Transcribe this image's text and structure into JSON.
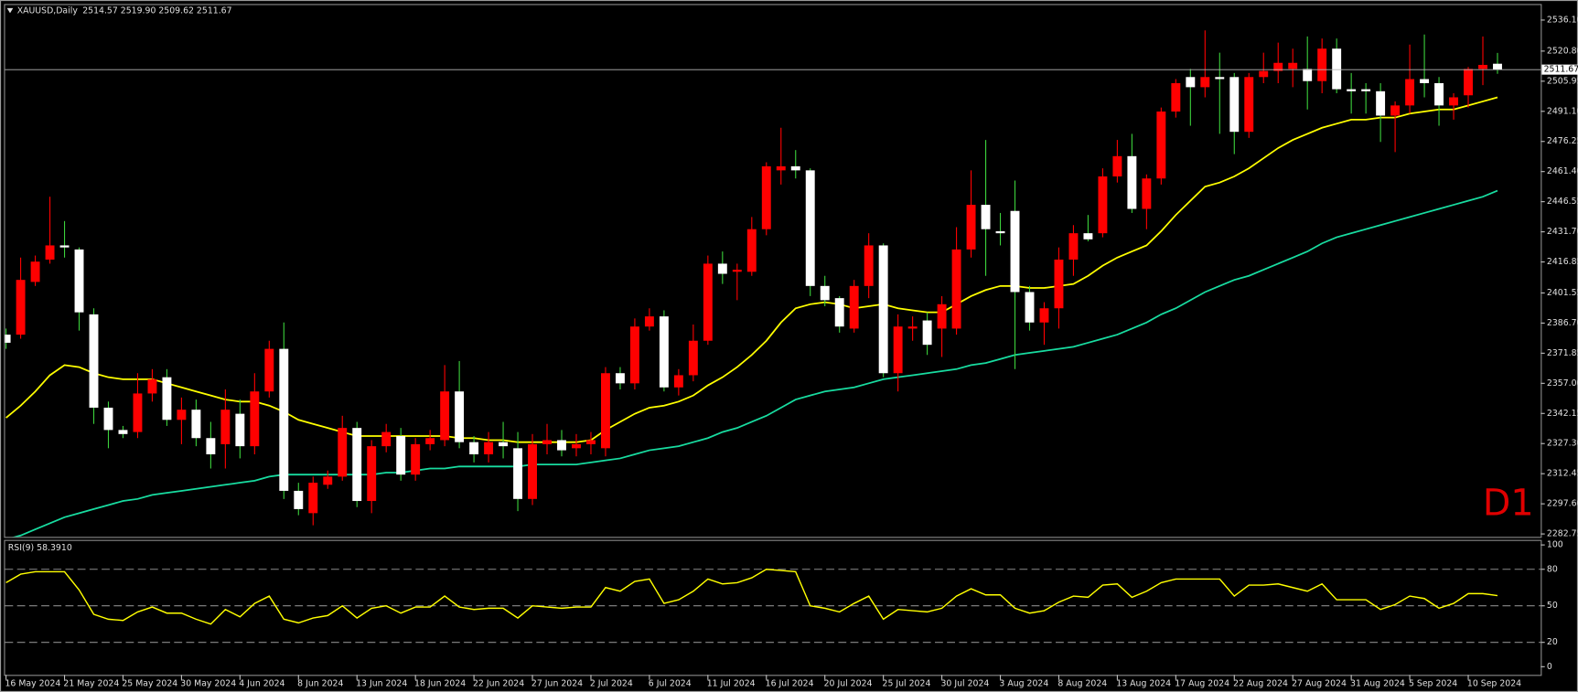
{
  "chart_data": [
    {
      "type": "candlestick",
      "title": "XAUUSD,Daily",
      "subtitle": "2514.57 2519.90 2509.62 2511.67",
      "timeframe": "D1",
      "categories": [
        "16 May 2024",
        null,
        null,
        null,
        "21 May 2024",
        null,
        null,
        null,
        "25 May 2024",
        null,
        null,
        null,
        "30 May 2024",
        null,
        null,
        null,
        "4 Jun 2024",
        null,
        null,
        null,
        "8 Jun 2024",
        null,
        null,
        null,
        "13 Jun 2024",
        null,
        null,
        null,
        "18 Jun 2024",
        null,
        null,
        null,
        "22 Jun 2024",
        null,
        null,
        null,
        "27 Jun 2024",
        null,
        null,
        null,
        "2 Jul 2024",
        null,
        null,
        null,
        "6 Jul 2024",
        null,
        null,
        null,
        "11 Jul 2024",
        null,
        null,
        null,
        "16 Jul 2024",
        null,
        null,
        null,
        "20 Jul 2024",
        null,
        null,
        null,
        "25 Jul 2024",
        null,
        null,
        null,
        "30 Jul 2024",
        null,
        null,
        null,
        "3 Aug 2024",
        null,
        null,
        null,
        "8 Aug 2024",
        null,
        null,
        null,
        "13 Aug 2024",
        null,
        null,
        null,
        "17 Aug 2024",
        null,
        null,
        null,
        "22 Aug 2024",
        null,
        null,
        null,
        "27 Aug 2024",
        null,
        null,
        null,
        "31 Aug 2024",
        null,
        null,
        null,
        "5 Sep 2024",
        null,
        null,
        null,
        "10 Sep 2024",
        null,
        null
      ],
      "open": [
        2381,
        2381,
        2407,
        2418,
        2425,
        2423,
        2391,
        2345,
        2334,
        2333,
        2352,
        2360,
        2339,
        2344,
        2330,
        2327,
        2342,
        2326,
        2353,
        2374,
        2304,
        2293,
        2307,
        2311,
        2335,
        2299,
        2326,
        2331,
        2312,
        2327,
        2329,
        2353,
        2328,
        2322,
        2328,
        2325,
        2300,
        2327,
        2329,
        2325,
        2327,
        2325,
        2362,
        2357,
        2385,
        2390,
        2355,
        2361,
        2378,
        2416,
        2412,
        2412,
        2433,
        2462,
        2464,
        2462,
        2405,
        2399,
        2384,
        2405,
        2425,
        2362,
        2384,
        2388,
        2384,
        2384,
        2423,
        2445,
        2432,
        2442,
        2402,
        2387,
        2394,
        2418,
        2431,
        2431,
        2459,
        2469,
        2443,
        2458,
        2491,
        2508,
        2503,
        2508,
        2508,
        2481,
        2508,
        2511,
        2512,
        2512,
        2506,
        2522,
        2502,
        2502,
        2501,
        2489,
        2494,
        2507,
        2505,
        2494,
        2499,
        2512,
        2514.57
      ],
      "high": [
        2384,
        2419,
        2420,
        2449,
        2437,
        2424,
        2394,
        2348,
        2336,
        2362,
        2364,
        2364,
        2350,
        2349,
        2338,
        2354,
        2349,
        2362,
        2378,
        2387,
        2308,
        2311,
        2314,
        2341,
        2338,
        2329,
        2337,
        2335,
        2330,
        2334,
        2366,
        2368,
        2331,
        2333,
        2338,
        2333,
        2332,
        2337,
        2334,
        2332,
        2333,
        2365,
        2365,
        2389,
        2394,
        2393,
        2364,
        2386,
        2420,
        2422,
        2416,
        2439,
        2466,
        2483,
        2472,
        2463,
        2410,
        2400,
        2408,
        2431,
        2426,
        2391,
        2390,
        2392,
        2400,
        2434,
        2462,
        2477,
        2441,
        2457,
        2405,
        2397,
        2424,
        2435,
        2440,
        2463,
        2477,
        2480,
        2460,
        2493,
        2507,
        2512,
        2531,
        2520,
        2510,
        2510,
        2520,
        2525,
        2522,
        2528,
        2527,
        2527,
        2510,
        2505,
        2505,
        2496,
        2524,
        2529,
        2508,
        2500,
        2513,
        2528,
        2519.9
      ],
      "low": [
        2374,
        2379,
        2405,
        2416,
        2419,
        2383,
        2337,
        2325,
        2330,
        2330,
        2348,
        2336,
        2327,
        2326,
        2315,
        2315,
        2320,
        2322,
        2350,
        2300,
        2292,
        2287,
        2305,
        2309,
        2296,
        2293,
        2323,
        2309,
        2309,
        2324,
        2326,
        2325,
        2318,
        2318,
        2320,
        2294,
        2297,
        2322,
        2321,
        2321,
        2322,
        2321,
        2354,
        2354,
        2383,
        2353,
        2351,
        2358,
        2376,
        2406,
        2398,
        2410,
        2430,
        2455,
        2458,
        2400,
        2395,
        2382,
        2382,
        2399,
        2360,
        2353,
        2378,
        2371,
        2370,
        2381,
        2419,
        2410,
        2425,
        2364,
        2383,
        2376,
        2384,
        2410,
        2427,
        2429,
        2456,
        2441,
        2433,
        2455,
        2488,
        2484,
        2498,
        2480,
        2470,
        2478,
        2505,
        2505,
        2503,
        2492,
        2500,
        2500,
        2490,
        2490,
        2476,
        2471,
        2490,
        2498,
        2484,
        2487,
        2493,
        2504,
        2509.62
      ],
      "close": [
        2377,
        2408,
        2417,
        2425,
        2424,
        2392,
        2345,
        2334,
        2332,
        2352,
        2359,
        2339,
        2344,
        2330,
        2322,
        2344,
        2326,
        2353,
        2374,
        2304,
        2295,
        2308,
        2311,
        2335,
        2299,
        2326,
        2333,
        2312,
        2327,
        2330,
        2353,
        2328,
        2322,
        2328,
        2326,
        2300,
        2327,
        2329,
        2324,
        2327,
        2329,
        2362,
        2357,
        2385,
        2390,
        2355,
        2361,
        2378,
        2416,
        2411,
        2413,
        2433,
        2464,
        2464,
        2462,
        2405,
        2398,
        2385,
        2405,
        2425,
        2362,
        2385,
        2385,
        2376,
        2396,
        2423,
        2445,
        2433,
        2431,
        2402,
        2387,
        2394,
        2418,
        2431,
        2428,
        2459,
        2469,
        2443,
        2458,
        2491,
        2505,
        2503,
        2508,
        2507,
        2481,
        2508,
        2511,
        2515,
        2515,
        2506,
        2522,
        2502,
        2501,
        2501,
        2489,
        2494,
        2507,
        2505,
        2494,
        2498,
        2512,
        2514,
        2511.67
      ],
      "up_color": "#ff0000",
      "down_color": "#ffffff",
      "up_wick_color": "#ff0000",
      "down_wick_color": "#3cd23c",
      "series": [
        {
          "color": "#ffff00",
          "values": [
            2340,
            2346,
            2353,
            2361,
            2366,
            2365,
            2362,
            2360,
            2359,
            2359,
            2359,
            2357,
            2355,
            2353,
            2351,
            2349,
            2348,
            2348,
            2346,
            2343,
            2339,
            2337,
            2335,
            2333,
            2331,
            2331,
            2331,
            2331,
            2331,
            2331,
            2331,
            2330,
            2330,
            2329,
            2329,
            2328,
            2328,
            2328,
            2328,
            2328,
            2329,
            2334,
            2338,
            2342,
            2345,
            2346,
            2348,
            2351,
            2356,
            2360,
            2365,
            2371,
            2378,
            2387,
            2394,
            2396,
            2397,
            2396,
            2394,
            2395,
            2396,
            2394,
            2393,
            2392,
            2392,
            2396,
            2400,
            2403,
            2405,
            2405,
            2404,
            2404,
            2405,
            2406,
            2410,
            2415,
            2419,
            2422,
            2425,
            2432,
            2440,
            2447,
            2454,
            2456,
            2459,
            2463,
            2468,
            2473,
            2477,
            2480,
            2483,
            2485,
            2487,
            2487,
            2488,
            2488,
            2490,
            2491,
            2492,
            2492,
            2494,
            2496,
            2498
          ]
        },
        {
          "color": "#18dca0",
          "values": [
            2280,
            2282,
            2285,
            2288,
            2291,
            2293,
            2295,
            2297,
            2299,
            2300,
            2302,
            2303,
            2304,
            2305,
            2306,
            2307,
            2308,
            2309,
            2311,
            2312,
            2312,
            2312,
            2312,
            2312,
            2312,
            2312,
            2313,
            2313,
            2314,
            2315,
            2315,
            2316,
            2316,
            2316,
            2316,
            2316,
            2317,
            2317,
            2317,
            2317,
            2318,
            2319,
            2320,
            2322,
            2324,
            2325,
            2326,
            2328,
            2330,
            2333,
            2335,
            2338,
            2341,
            2345,
            2349,
            2351,
            2353,
            2354,
            2355,
            2357,
            2359,
            2360,
            2361,
            2362,
            2363,
            2364,
            2366,
            2367,
            2369,
            2371,
            2372,
            2373,
            2374,
            2375,
            2377,
            2379,
            2381,
            2384,
            2387,
            2391,
            2394,
            2398,
            2402,
            2405,
            2408,
            2410,
            2413,
            2416,
            2419,
            2422,
            2426,
            2429,
            2431,
            2433,
            2435,
            2437,
            2439,
            2441,
            2443,
            2445,
            2447,
            2449,
            2452
          ]
        }
      ],
      "last_price": 2511.67,
      "ylim": [
        2281.3,
        2544.0
      ],
      "yticks": [
        2282.75,
        {
          "value": 2297.6,
          "label": "2297.60"
        },
        2312.45,
        {
          "value": 2327.3,
          "label": "2327.30"
        },
        2342.15,
        {
          "value": 2357,
          "label": "2357.00"
        },
        2371.85,
        {
          "value": 2386.7,
          "label": "2386.70"
        },
        2401.55,
        2416.85,
        {
          "value": 2431.7,
          "label": "2431.70"
        },
        2446.55,
        {
          "value": 2461.4,
          "label": "2461.40"
        },
        2476.25,
        {
          "value": 2491.1,
          "label": "2491.10"
        },
        2505.95,
        {
          "value": 2520.8,
          "label": "2520.80"
        },
        {
          "value": 2536.1,
          "label": "2536.10"
        }
      ],
      "grid": false
    },
    {
      "type": "line",
      "title": "RSI(9) 58.3910",
      "color": "#ffff00",
      "values": [
        69,
        76,
        78,
        78,
        78,
        63,
        43,
        39,
        38,
        45,
        49,
        44,
        44,
        39,
        35,
        47,
        41,
        52,
        58,
        39,
        36,
        40,
        42,
        50,
        40,
        48,
        50,
        44,
        49,
        49,
        58,
        49,
        47,
        48,
        48,
        40,
        50,
        49,
        48,
        49,
        49,
        65,
        62,
        70,
        72,
        52,
        55,
        62,
        72,
        68,
        69,
        73,
        80,
        79,
        78,
        50,
        48,
        45,
        52,
        58,
        39,
        47,
        46,
        45,
        48,
        58,
        64,
        59,
        59,
        48,
        44,
        46,
        53,
        58,
        57,
        67,
        68,
        57,
        62,
        69,
        72,
        72,
        72,
        72,
        58,
        67,
        67,
        68,
        65,
        62,
        68,
        55,
        55,
        55,
        47,
        51,
        58,
        56,
        48,
        52,
        60,
        60,
        58.391
      ],
      "ylim": [
        -6.7,
        103.3
      ],
      "yticks": [
        0,
        20,
        50,
        80,
        100
      ],
      "levels": [
        20,
        50,
        80
      ],
      "grid": false
    }
  ]
}
